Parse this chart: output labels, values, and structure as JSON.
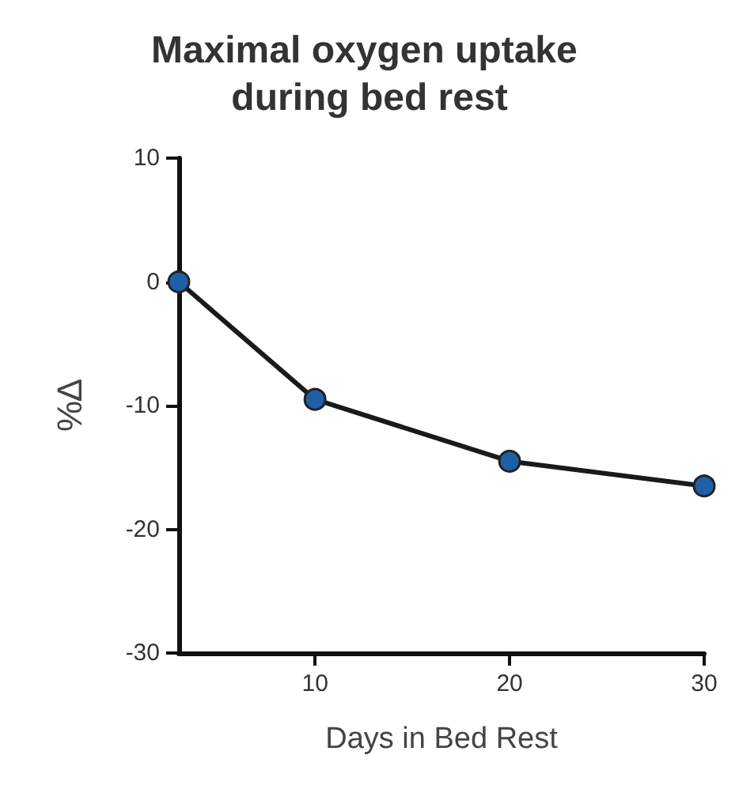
{
  "chart_data": {
    "type": "line",
    "title": "Maximal oxygen uptake during bed rest",
    "xlabel": "Days in Bed Rest",
    "ylabel": "%∆",
    "x": [
      3,
      10,
      20,
      30
    ],
    "series": [
      {
        "color": "#1f5fa8",
        "values": [
          0,
          -9.5,
          -14.5,
          -16.5
        ]
      }
    ],
    "xlim": [
      3,
      30
    ],
    "xticks": [
      10,
      20,
      30
    ],
    "ylim": [
      -30,
      10
    ],
    "yticks": [
      -30,
      -20,
      -10,
      0,
      10
    ],
    "grid": false,
    "marker": "circle",
    "line_style": "solid"
  }
}
